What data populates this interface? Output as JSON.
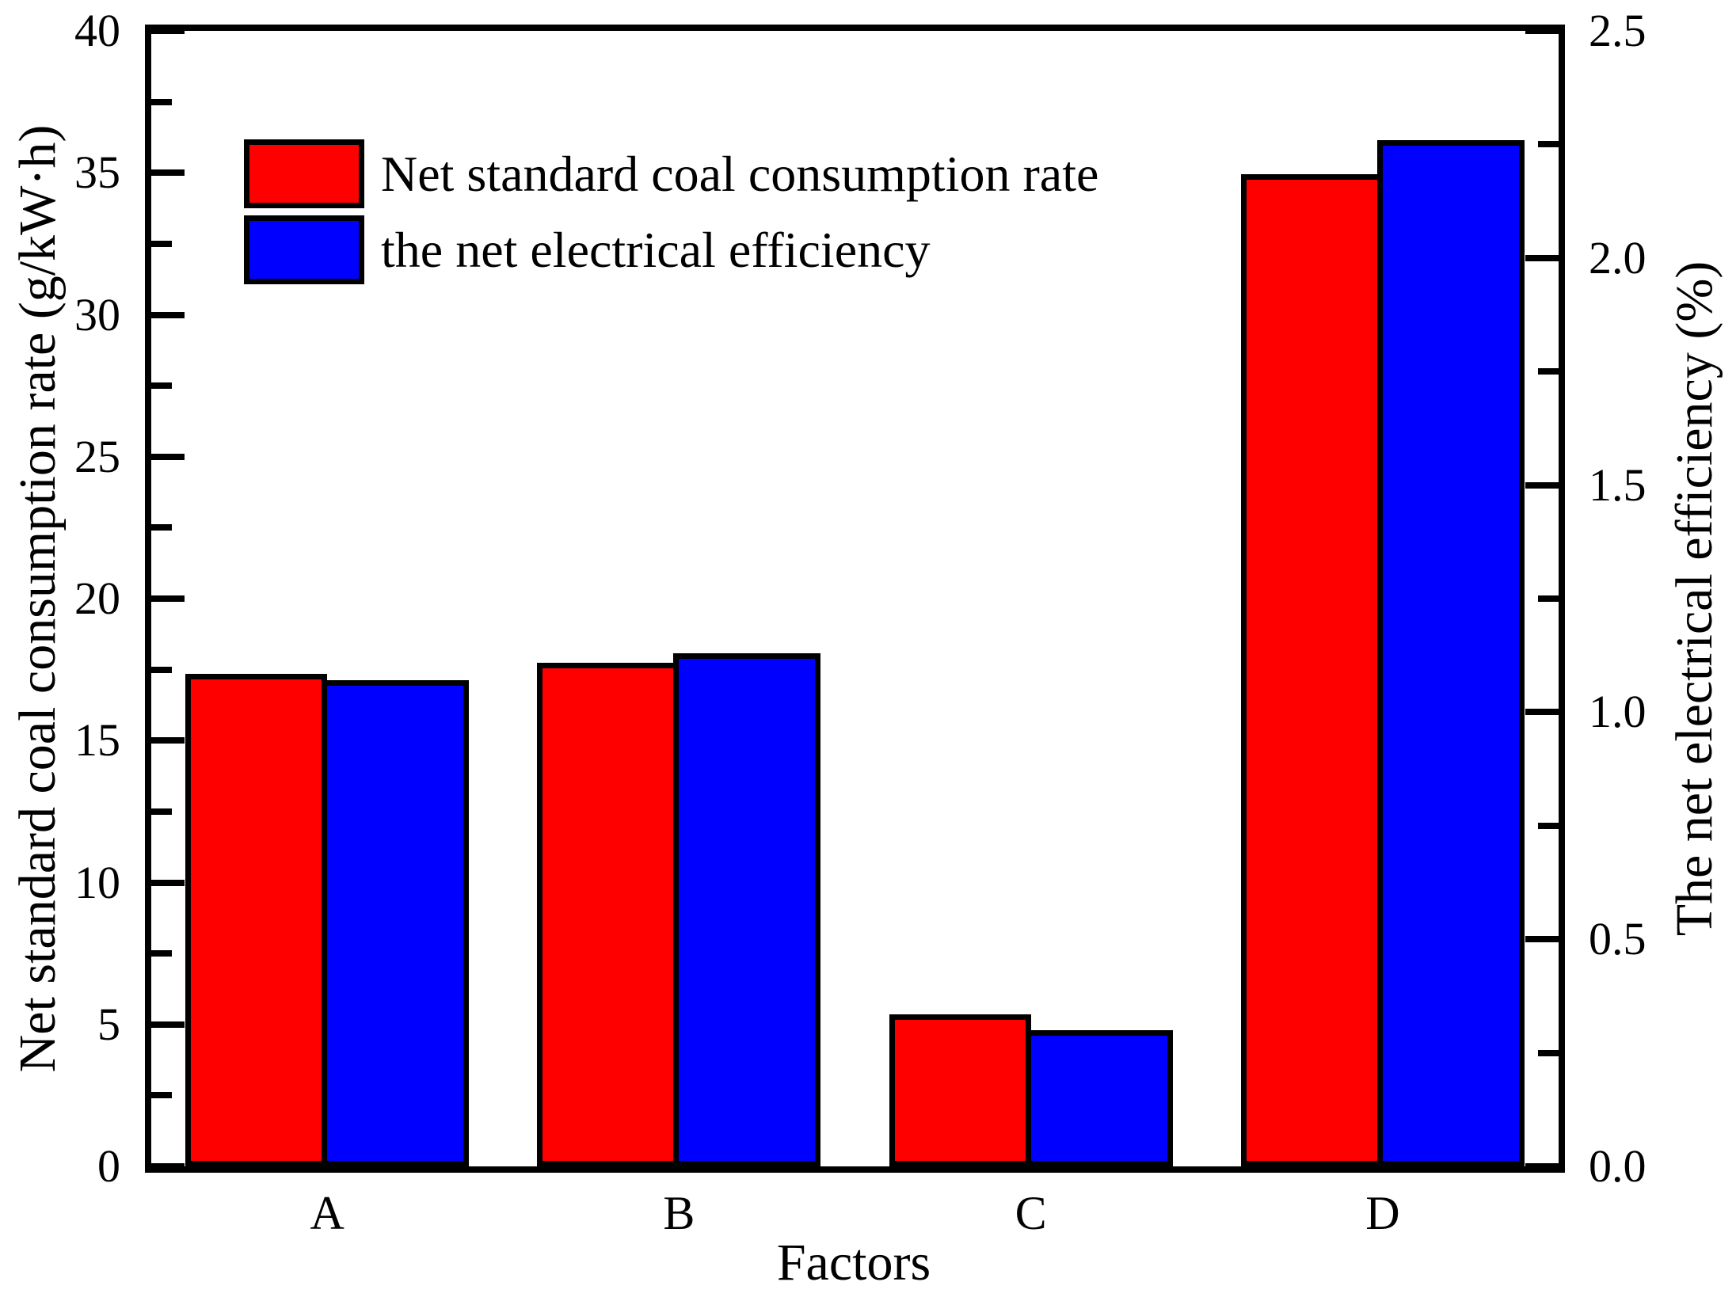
{
  "chart_data": {
    "type": "bar",
    "categories": [
      "A",
      "B",
      "C",
      "D"
    ],
    "series": [
      {
        "name": "Net standard coal consumption rate",
        "axis": "left",
        "color": "#ff0000",
        "values": [
          17.35,
          17.75,
          5.35,
          34.95
        ]
      },
      {
        "name": "the net electrical efficiency",
        "axis": "right",
        "color": "#0000ff",
        "values": [
          1.07,
          1.13,
          0.3,
          2.26
        ]
      }
    ],
    "xlabel": "Factors",
    "ylabel_left": "Net standard coal consumption rate (g/kW·h)",
    "ylabel_right": "The net electrical efficiency (%)",
    "ylim_left": [
      0,
      40
    ],
    "ylim_right": [
      0.0,
      2.5
    ],
    "yticks_left": [
      "0",
      "5",
      "10",
      "15",
      "20",
      "25",
      "30",
      "35",
      "40"
    ],
    "yticks_right": [
      "0.0",
      "0.5",
      "1.0",
      "1.5",
      "2.0",
      "2.5"
    ],
    "grid": "off",
    "legend_position": "top-left"
  }
}
